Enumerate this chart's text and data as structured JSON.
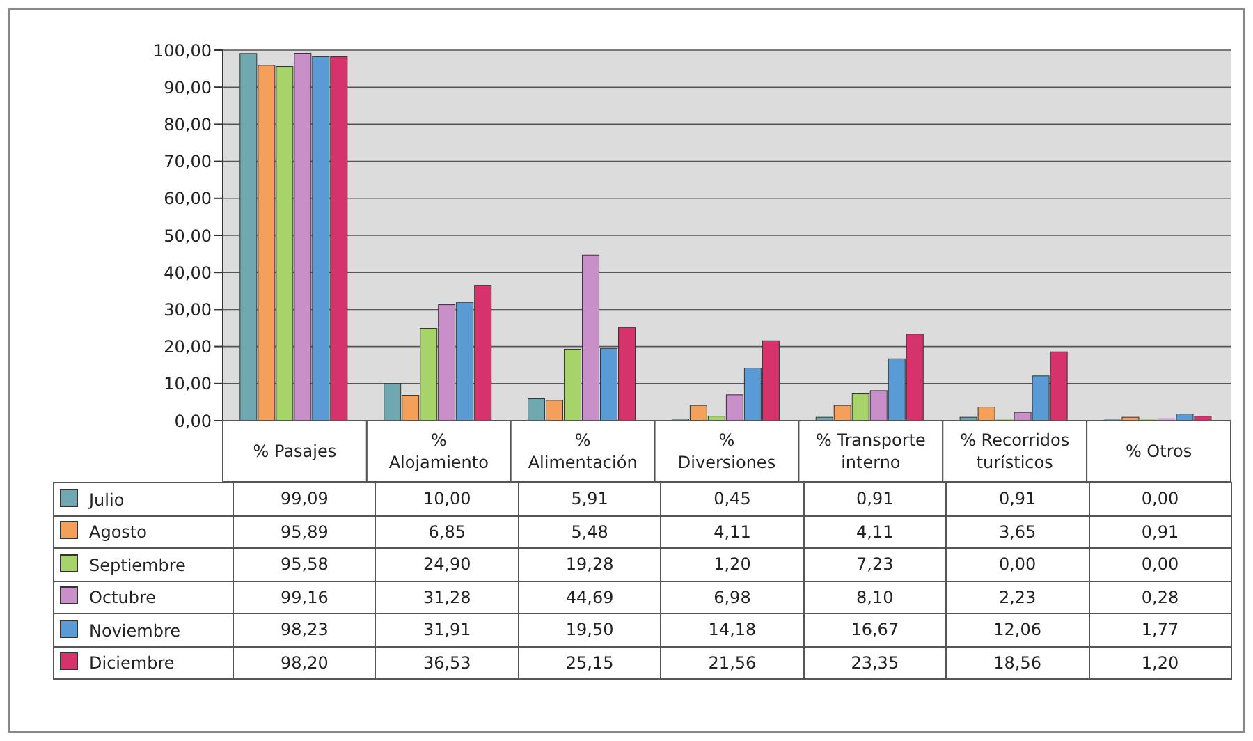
{
  "chart_data": {
    "type": "bar",
    "categories": [
      "% Pasajes",
      "% Alojamiento",
      "% Alimentación",
      "% Diversiones",
      "% Transporte interno",
      "% Recorridos turísticos",
      "% Otros"
    ],
    "series": [
      {
        "name": "Julio",
        "color": "#6fa8b0",
        "values": [
          99.09,
          10.0,
          5.91,
          0.45,
          0.91,
          0.91,
          0.0
        ],
        "value_labels": [
          "99,09",
          "10,00",
          "5,91",
          "0,45",
          "0,91",
          "0,91",
          "0,00"
        ]
      },
      {
        "name": "Agosto",
        "color": "#f5a05a",
        "values": [
          95.89,
          6.85,
          5.48,
          4.11,
          4.11,
          3.65,
          0.91
        ],
        "value_labels": [
          "95,89",
          "6,85",
          "5,48",
          "4,11",
          "4,11",
          "3,65",
          "0,91"
        ]
      },
      {
        "name": "Septiembre",
        "color": "#a6d36a",
        "values": [
          95.58,
          24.9,
          19.28,
          1.2,
          7.23,
          0.0,
          0.0
        ],
        "value_labels": [
          "95,58",
          "24,90",
          "19,28",
          "1,20",
          "7,23",
          "0,00",
          "0,00"
        ]
      },
      {
        "name": "Octubre",
        "color": "#c98fc9",
        "values": [
          99.16,
          31.28,
          44.69,
          6.98,
          8.1,
          2.23,
          0.28
        ],
        "value_labels": [
          "99,16",
          "31,28",
          "44,69",
          "6,98",
          "8,10",
          "2,23",
          "0,28"
        ]
      },
      {
        "name": "Noviembre",
        "color": "#5b9bd5",
        "values": [
          98.23,
          31.91,
          19.5,
          14.18,
          16.67,
          12.06,
          1.77
        ],
        "value_labels": [
          "98,23",
          "31,91",
          "19,50",
          "14,18",
          "16,67",
          "12,06",
          "1,77"
        ]
      },
      {
        "name": "Diciembre",
        "color": "#d6336c",
        "values": [
          98.2,
          36.53,
          25.15,
          21.56,
          23.35,
          18.56,
          1.2
        ],
        "value_labels": [
          "98,20",
          "36,53",
          "25,15",
          "21,56",
          "23,35",
          "18,56",
          "1,20"
        ]
      }
    ],
    "ylim": [
      0,
      100
    ],
    "yticks": [
      {
        "value": 0,
        "label": "0,00"
      },
      {
        "value": 10,
        "label": "10,00"
      },
      {
        "value": 20,
        "label": "20,00"
      },
      {
        "value": 30,
        "label": "30,00"
      },
      {
        "value": 40,
        "label": "40,00"
      },
      {
        "value": 50,
        "label": "50,00"
      },
      {
        "value": 60,
        "label": "60,00"
      },
      {
        "value": 70,
        "label": "70,00"
      },
      {
        "value": 80,
        "label": "80,00"
      },
      {
        "value": 90,
        "label": "90,00"
      },
      {
        "value": 100,
        "label": "100,00"
      }
    ],
    "grid": "y",
    "legend": "bottom left"
  }
}
